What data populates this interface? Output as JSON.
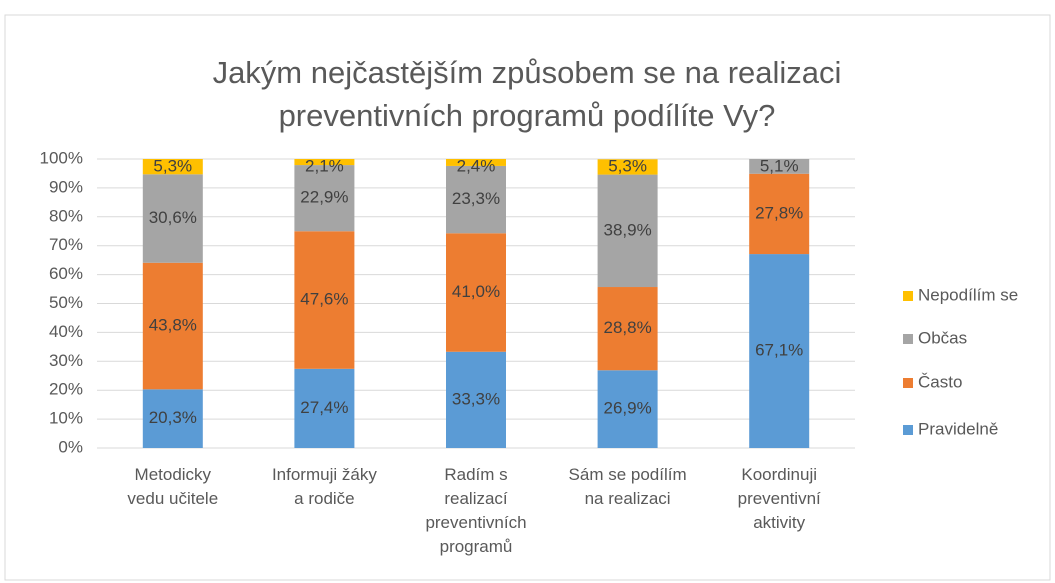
{
  "chart_data": {
    "type": "stacked_bar",
    "title": "Jakým nejčastějším způsobem se na realizaci\npreventivních programů podílíte Vy?",
    "categories": [
      "Metodicky\nvedu učitele",
      "Informuji žáky\na rodiče",
      "Radím s\nrealizací\npreventivních\nprogramů",
      "Sám se podílím\nna realizaci",
      "Koordinuji\npreventivní\naktivity"
    ],
    "series": [
      {
        "name": "Pravidelně",
        "color": "#5b9bd5",
        "values": [
          20.3,
          27.4,
          33.3,
          26.9,
          67.1
        ],
        "value_labels": [
          "20,3%",
          "27,4%",
          "33,3%",
          "26,9%",
          "67,1%"
        ]
      },
      {
        "name": "Často",
        "color": "#ed7d31",
        "values": [
          43.8,
          47.6,
          41.0,
          28.8,
          27.8
        ],
        "value_labels": [
          "43,8%",
          "47,6%",
          "41,0%",
          "28,8%",
          "27,8%"
        ]
      },
      {
        "name": "Občas",
        "color": "#a5a5a5",
        "values": [
          30.6,
          22.9,
          23.3,
          38.9,
          5.1
        ],
        "value_labels": [
          "30,6%",
          "22,9%",
          "23,3%",
          "38,9%",
          "5,1%"
        ]
      },
      {
        "name": "Nepodílím se",
        "color": "#ffc000",
        "values": [
          5.3,
          2.1,
          2.4,
          5.3,
          null
        ],
        "value_labels": [
          "5,3%",
          "2,1%",
          "2,4%",
          "5,3%",
          null
        ]
      }
    ],
    "ylim": [
      0,
      100
    ],
    "yticks": [
      {
        "value": 0,
        "label": "0%"
      },
      {
        "value": 10,
        "label": "10%"
      },
      {
        "value": 20,
        "label": "20%"
      },
      {
        "value": 30,
        "label": "30%"
      },
      {
        "value": 40,
        "label": "40%"
      },
      {
        "value": 50,
        "label": "50%"
      },
      {
        "value": 60,
        "label": "60%"
      },
      {
        "value": 70,
        "label": "70%"
      },
      {
        "value": 80,
        "label": "80%"
      },
      {
        "value": 90,
        "label": "90%"
      },
      {
        "value": 100,
        "label": "100%"
      }
    ],
    "grid": true,
    "legend": "right"
  }
}
